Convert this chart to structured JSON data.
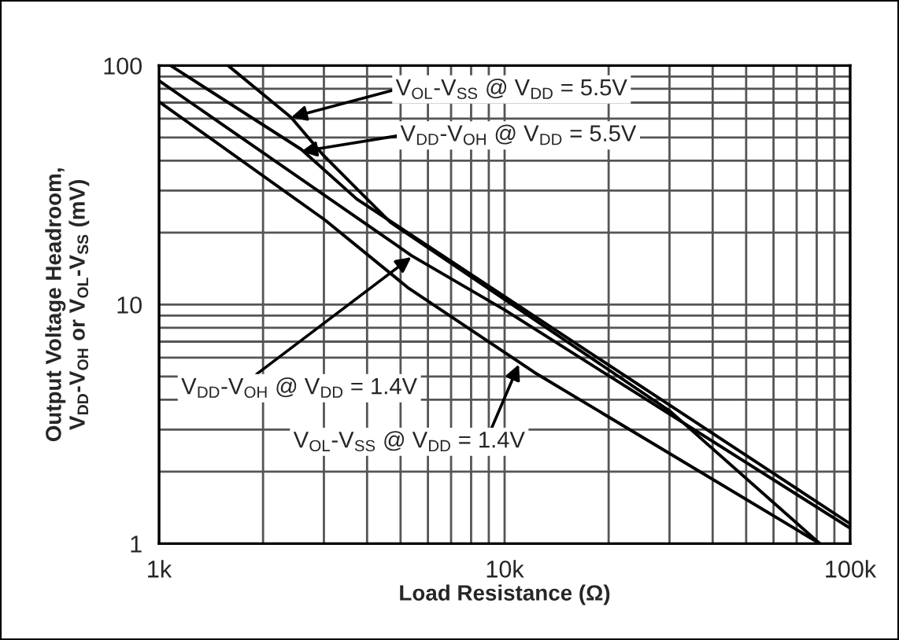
{
  "chart_data": {
    "type": "line",
    "xlabel": "Load Resistance (Ω)",
    "ylabel": "Output Voltage Headroom,\nV$_{DD}$-V$_{OH}$ or V$_{OL}$-V$_{SS}$ (mV)",
    "log": "xy",
    "grid": true,
    "legend": false,
    "marker": "none",
    "line_style": "solid",
    "xlim": [
      1000,
      100000
    ],
    "ylim": [
      1,
      100
    ],
    "xticks": [
      {
        "value": 1000,
        "label": "1k"
      },
      {
        "value": 10000,
        "label": "10k"
      },
      {
        "value": 100000,
        "label": "100k"
      }
    ],
    "yticks": [
      1,
      10,
      100
    ],
    "series": [
      {
        "color": "#000000",
        "x": [
          1080,
          2580,
          3740,
          10000,
          100000
        ],
        "values": [
          100,
          44.6,
          27.6,
          10.8,
          1.21
        ]
      },
      {
        "color": "#000000",
        "x": [
          1585,
          2410,
          2970,
          3790,
          4670,
          10000,
          30200,
          81700
        ],
        "values": [
          100,
          60.7,
          42.6,
          29.9,
          22.1,
          10.5,
          3.57,
          1
        ]
      },
      {
        "color": "#000000",
        "x": [
          1000,
          4210,
          5390,
          10000,
          100000
        ],
        "values": [
          86.5,
          20.5,
          16,
          9.5,
          1.16
        ]
      },
      {
        "color": "#000000",
        "x": [
          1000,
          3020,
          5280,
          12200,
          81700
        ],
        "values": [
          70.6,
          22.6,
          11.7,
          5.2,
          1
        ]
      }
    ],
    "annotations": [
      {
        "text": "V$_{OL}$-V$_{SS}$ @ V$_{DD}$ = 5.5V",
        "x": 2410,
        "y": 60.7
      },
      {
        "text": "V$_{DD}$-V$_{OH}$ @ V$_{DD}$ = 5.5V",
        "x": 2580,
        "y": 43.7
      },
      {
        "text": "V$_{DD}$-V$_{OH}$ @ V$_{DD}$ = 1.4V",
        "x": 5370,
        "y": 15.8
      },
      {
        "text": "V$_{OL}$-V$_{SS}$ @ V$_{DD}$ = 1.4V",
        "x": 11000,
        "y": 5.62
      }
    ]
  }
}
